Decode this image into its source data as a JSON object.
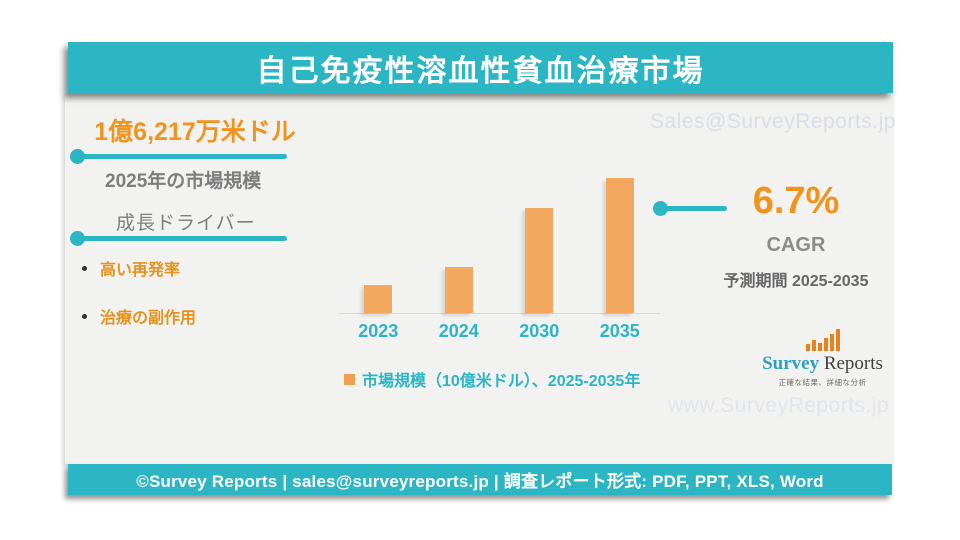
{
  "title_banner": {
    "text": "自己免疫性溶血性貧血治療市場"
  },
  "market_size": {
    "value": "1億6,217万米ドル",
    "label": "2025年の市場規模"
  },
  "growth_drivers": {
    "heading": "成長ドライバー",
    "items": [
      "高い再発率",
      "治療の副作用"
    ]
  },
  "cagr": {
    "value": "6.7%",
    "label": "CAGR",
    "period": "予測期間 2025-2035"
  },
  "legend": {
    "label": "市場規模（10億米ドル）、2025-2035年"
  },
  "watermarks": {
    "top": "Sales@SurveyReports.jp",
    "bottom": "www.SurveyReports.jp"
  },
  "logo": {
    "icon": "bar-chart-icon",
    "name_part1": "Survey",
    "name_part2": "Reports",
    "tagline": "正確な結果、詳細な分析"
  },
  "footer": {
    "text": "©Survey Reports | sales@surveyreports.jp | 調査レポート形式: PDF, PPT, XLS, Word"
  },
  "colors": {
    "teal": "#2cb5c3",
    "orange_text": "#f0941f",
    "bar_orange": "#f2a85f",
    "gray_text": "#7d7d7d",
    "dark_gray_text": "#666666",
    "card_bg": "#f2f2f1",
    "watermark": "#dadde6"
  },
  "chart_data": {
    "type": "bar",
    "title": "市場規模（10億米ドル）、2025-2035年",
    "categories": [
      "2023",
      "2024",
      "2030",
      "2035"
    ],
    "values": [
      21,
      34,
      78,
      100
    ],
    "value_note": "relative bar heights in % of tallest bar; no value axis shown in figure",
    "xlabel": "",
    "ylabel": "",
    "y_axis_visible": false,
    "grid": false,
    "legend_position": "bottom",
    "bar_color": "#f2a85f",
    "tick_label_color": "#2cb5c3"
  }
}
